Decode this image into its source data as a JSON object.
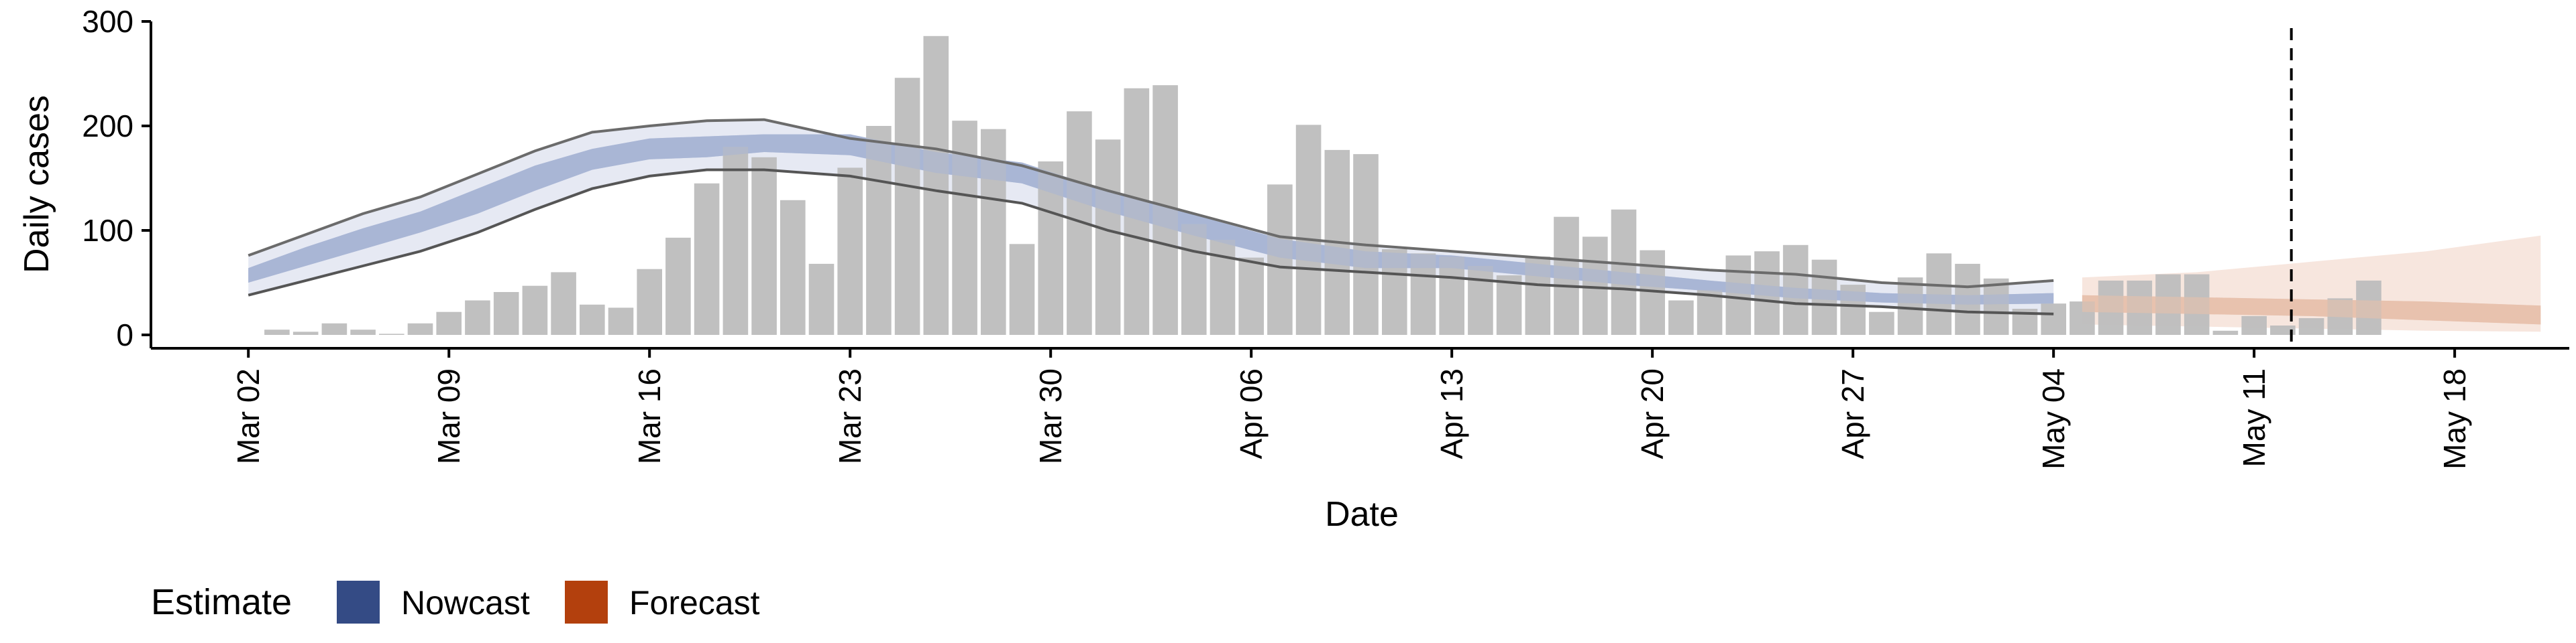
{
  "chart_data": {
    "type": "bar",
    "title": "",
    "xlabel": "Date",
    "ylabel": "Daily cases",
    "ylim": [
      0,
      300
    ],
    "y_ticks": [
      0,
      100,
      200,
      300
    ],
    "x_ticks": [
      {
        "label": "Mar 02",
        "day": 0
      },
      {
        "label": "Mar 09",
        "day": 7
      },
      {
        "label": "Mar 16",
        "day": 14
      },
      {
        "label": "Mar 23",
        "day": 21
      },
      {
        "label": "Mar 30",
        "day": 28
      },
      {
        "label": "Apr 06",
        "day": 35
      },
      {
        "label": "Apr 13",
        "day": 42
      },
      {
        "label": "Apr 20",
        "day": 49
      },
      {
        "label": "Apr 27",
        "day": 56
      },
      {
        "label": "May 04",
        "day": 63
      },
      {
        "label": "May 11",
        "day": 70
      },
      {
        "label": "May 18",
        "day": 77
      }
    ],
    "x_domain_days": [
      -3.4,
      81
    ],
    "bars_start_day": 1,
    "bar_values": [
      5,
      3,
      11,
      5,
      1,
      11,
      22,
      33,
      41,
      47,
      60,
      29,
      26,
      63,
      93,
      145,
      180,
      170,
      129,
      68,
      160,
      200,
      246,
      286,
      205,
      197,
      87,
      166,
      214,
      187,
      236,
      239,
      106,
      91,
      74,
      144,
      201,
      177,
      173,
      82,
      78,
      75,
      66,
      57,
      75,
      113,
      94,
      120,
      81,
      33,
      43,
      76,
      80,
      86,
      72,
      48,
      22,
      55,
      78,
      68,
      54,
      25,
      30,
      32,
      52,
      52,
      58,
      58,
      4,
      18,
      9,
      16,
      35,
      52
    ],
    "nowcast_days": [
      0,
      2,
      4,
      6,
      8,
      10,
      12,
      14,
      16,
      18,
      21,
      24,
      27,
      30,
      33,
      36,
      39,
      42,
      45,
      48,
      51,
      54,
      57,
      60,
      63
    ],
    "nowcast_median": [
      57,
      75,
      92,
      108,
      128,
      150,
      168,
      178,
      180,
      183,
      182,
      165,
      155,
      128,
      105,
      83,
      72,
      70,
      62,
      54,
      47,
      40,
      35,
      33,
      35
    ],
    "nowcast_inner_lower": [
      50,
      66,
      82,
      98,
      116,
      138,
      158,
      168,
      170,
      175,
      172,
      155,
      145,
      118,
      95,
      74,
      64,
      64,
      56,
      48,
      42,
      35,
      31,
      29,
      30
    ],
    "nowcast_inner_upper": [
      64,
      84,
      102,
      118,
      140,
      162,
      178,
      188,
      190,
      192,
      192,
      175,
      165,
      138,
      115,
      92,
      80,
      76,
      68,
      60,
      52,
      45,
      40,
      38,
      40
    ],
    "nowcast_outer_lower": [
      38,
      52,
      66,
      80,
      98,
      120,
      140,
      152,
      158,
      158,
      152,
      138,
      126,
      100,
      80,
      65,
      60,
      55,
      48,
      44,
      38,
      30,
      27,
      22,
      20
    ],
    "nowcast_outer_upper": [
      76,
      96,
      116,
      132,
      154,
      176,
      194,
      200,
      205,
      206,
      188,
      178,
      162,
      138,
      116,
      94,
      86,
      80,
      74,
      68,
      62,
      58,
      50,
      46,
      52
    ],
    "forecast_days": [
      64,
      68,
      72,
      76,
      80
    ],
    "forecast_median": [
      30,
      28,
      26,
      22,
      18
    ],
    "forecast_inner_lower": [
      22,
      20,
      18,
      14,
      10
    ],
    "forecast_inner_upper": [
      38,
      36,
      34,
      32,
      28
    ],
    "forecast_outer_lower": [
      10,
      8,
      6,
      4,
      3
    ],
    "forecast_outer_upper": [
      55,
      60,
      70,
      80,
      95
    ],
    "vline_day": 71.3,
    "legend": {
      "title": "Estimate",
      "position": "bottom-left",
      "entries": [
        {
          "label": "Nowcast",
          "color": "#344b85"
        },
        {
          "label": "Forecast",
          "color": "#b3400d"
        }
      ]
    }
  },
  "colors": {
    "bar": "#bdbdbd",
    "nowcast_inner": "#a9b6d6",
    "nowcast_outer": "#e6e9f3",
    "nowcast_line": "#6b6b6b",
    "forecast_inner": "#e8c2ae",
    "forecast_outer": "#f7e6de",
    "axis": "#000000"
  }
}
